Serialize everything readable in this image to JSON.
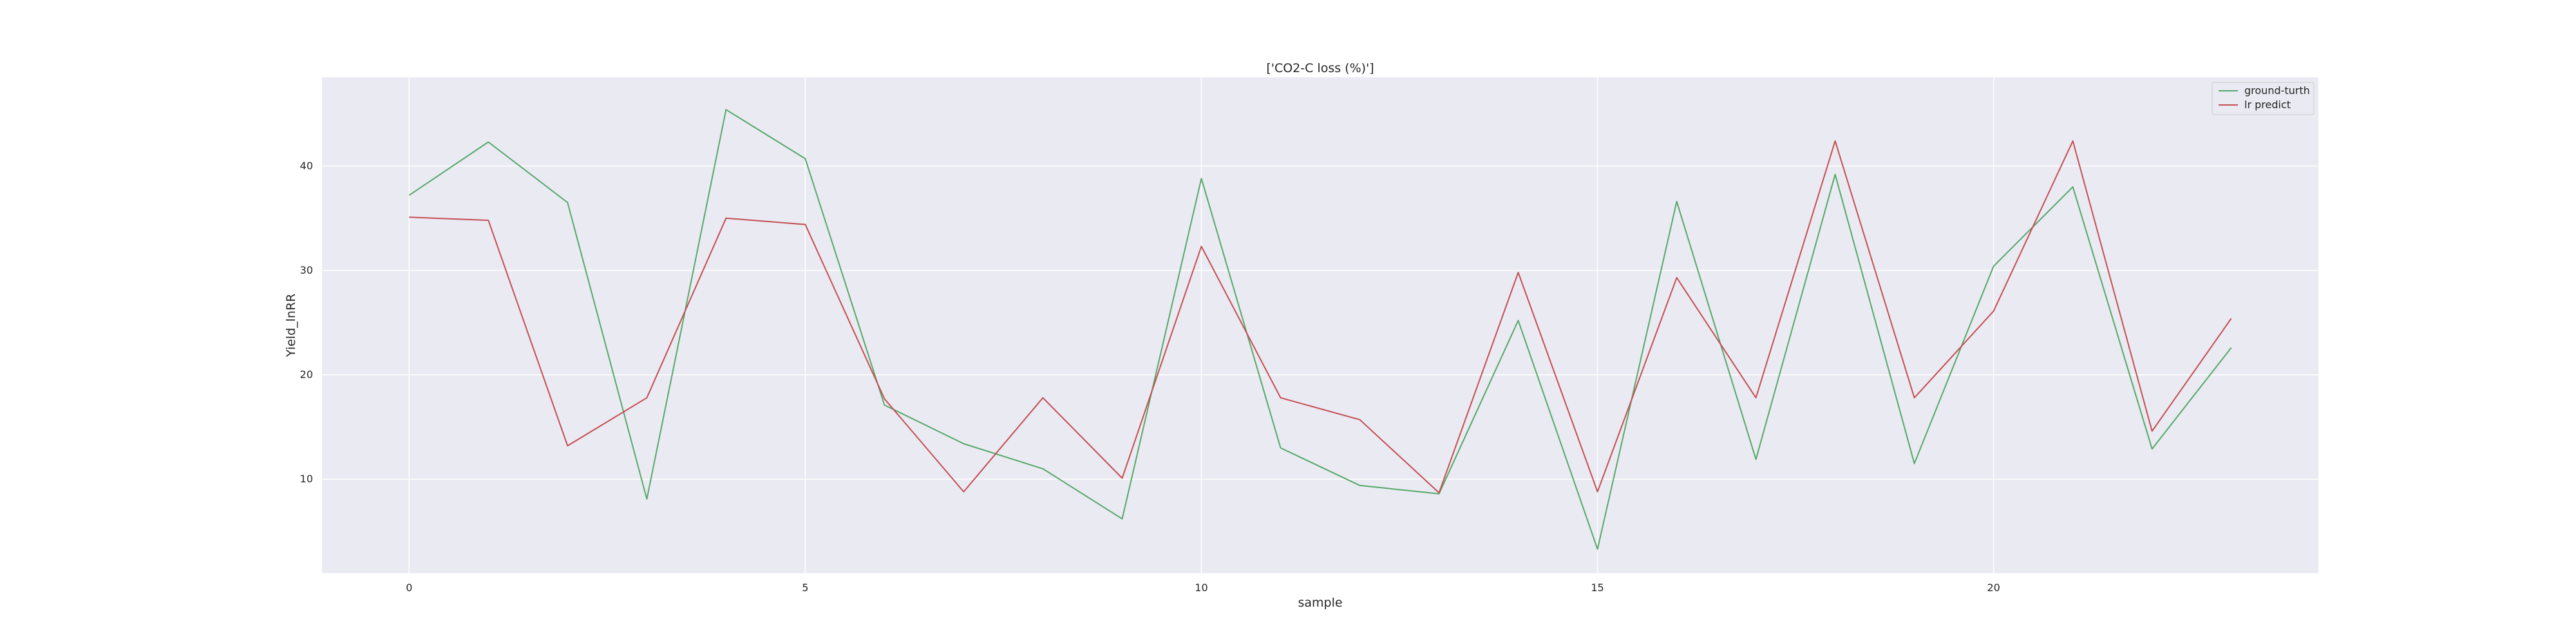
{
  "chart_data": {
    "type": "line",
    "title": "['CO2-C loss (%)']",
    "xlabel": "sample",
    "ylabel": "Yield_lnRR",
    "xlim": [
      -1.1,
      24.1
    ],
    "ylim": [
      1,
      48.5
    ],
    "xticks": [
      0,
      5,
      10,
      15,
      20
    ],
    "yticks": [
      10,
      20,
      30,
      40
    ],
    "grid": true,
    "legend_position": "top-right",
    "x": [
      0,
      1,
      2,
      3,
      4,
      5,
      6,
      7,
      8,
      9,
      10,
      11,
      12,
      13,
      14,
      15,
      16,
      17,
      18,
      19,
      20,
      21,
      22,
      23
    ],
    "series": [
      {
        "name": "ground-turth",
        "color": "#55a868",
        "values": [
          37.2,
          42.3,
          36.5,
          8.1,
          45.4,
          40.7,
          17.1,
          13.4,
          11.0,
          6.2,
          38.8,
          13.0,
          9.4,
          8.6,
          25.2,
          3.3,
          36.6,
          11.9,
          39.2,
          11.5,
          30.4,
          38.0,
          12.9,
          22.6
        ]
      },
      {
        "name": "lr predict",
        "color": "#c44e52",
        "values": [
          35.1,
          34.8,
          13.2,
          17.8,
          35.0,
          34.4,
          17.7,
          8.8,
          17.8,
          10.1,
          32.3,
          17.8,
          15.7,
          8.7,
          29.8,
          8.8,
          29.3,
          17.8,
          42.4,
          17.8,
          26.1,
          42.4,
          14.6,
          25.4
        ]
      }
    ]
  }
}
